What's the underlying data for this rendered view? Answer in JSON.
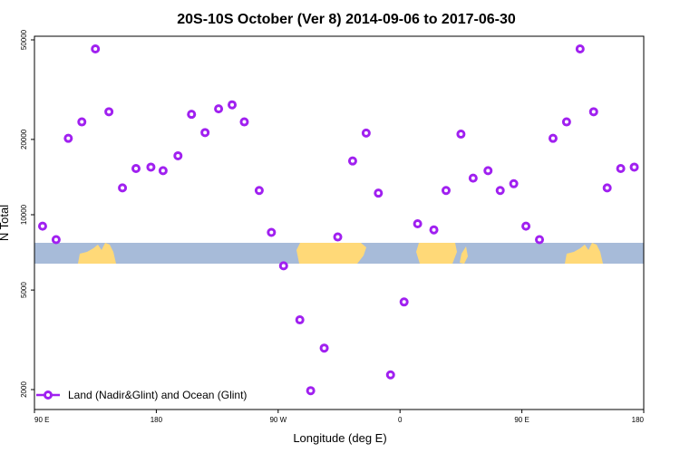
{
  "chart_data": {
    "type": "scatter",
    "title": "20S-10S October (Ver 8)   2014-09-06 to 2017-06-30",
    "xlabel": "Longitude (deg E)",
    "ylabel": "N Total",
    "y_scale": "log",
    "xlim": [
      90,
      540
    ],
    "ylim": [
      1900,
      52000
    ],
    "x_ticks": [
      {
        "value": 90,
        "label": "90 E"
      },
      {
        "value": 180,
        "label": "180"
      },
      {
        "value": 270,
        "label": "90 W"
      },
      {
        "value": 360,
        "label": "0"
      },
      {
        "value": 450,
        "label": "90 E"
      },
      {
        "value": 540,
        "label": "180"
      }
    ],
    "y_ticks": [
      {
        "value": 2000,
        "label": "2000"
      },
      {
        "value": 5000,
        "label": "5000"
      },
      {
        "value": 10000,
        "label": "10000"
      },
      {
        "value": 20000,
        "label": "20000"
      },
      {
        "value": 50000,
        "label": "50000"
      }
    ],
    "legend": {
      "position": "bottom-left",
      "label": "Land (Nadir&Glint) and Ocean (Glint)"
    },
    "series": [
      {
        "name": "Land (Nadir&Glint) and Ocean (Glint)",
        "color": "#a020f0",
        "marker": "open-circle",
        "points": [
          [
            96,
            9000
          ],
          [
            106,
            7950
          ],
          [
            115,
            20200
          ],
          [
            125,
            23500
          ],
          [
            135,
            46000
          ],
          [
            145,
            25800
          ],
          [
            155,
            12800
          ],
          [
            165,
            15300
          ],
          [
            176,
            15500
          ],
          [
            185,
            15000
          ],
          [
            196,
            17200
          ],
          [
            206,
            25200
          ],
          [
            216,
            21300
          ],
          [
            226,
            26500
          ],
          [
            236,
            27500
          ],
          [
            245,
            23500
          ],
          [
            256,
            12500
          ],
          [
            265,
            8500
          ],
          [
            274,
            6250
          ],
          [
            286,
            3800
          ],
          [
            294,
            1980
          ],
          [
            304,
            2930
          ],
          [
            314,
            8150
          ],
          [
            325,
            16400
          ],
          [
            335,
            21200
          ],
          [
            344,
            12200
          ],
          [
            353,
            2290
          ],
          [
            363,
            4480
          ],
          [
            373,
            9200
          ],
          [
            385,
            8700
          ],
          [
            394,
            12500
          ],
          [
            405,
            21000
          ],
          [
            414,
            14000
          ],
          [
            425,
            15000
          ],
          [
            434,
            12500
          ],
          [
            444,
            13300
          ],
          [
            453,
            9000
          ],
          [
            463,
            7950
          ],
          [
            473,
            20200
          ],
          [
            483,
            23500
          ],
          [
            493,
            46000
          ],
          [
            503,
            25800
          ],
          [
            513,
            12800
          ],
          [
            523,
            15300
          ],
          [
            533,
            15500
          ]
        ]
      }
    ]
  },
  "map_strip": {
    "ocean_color": "#a7bbd9",
    "land_color": "#ffd978"
  }
}
